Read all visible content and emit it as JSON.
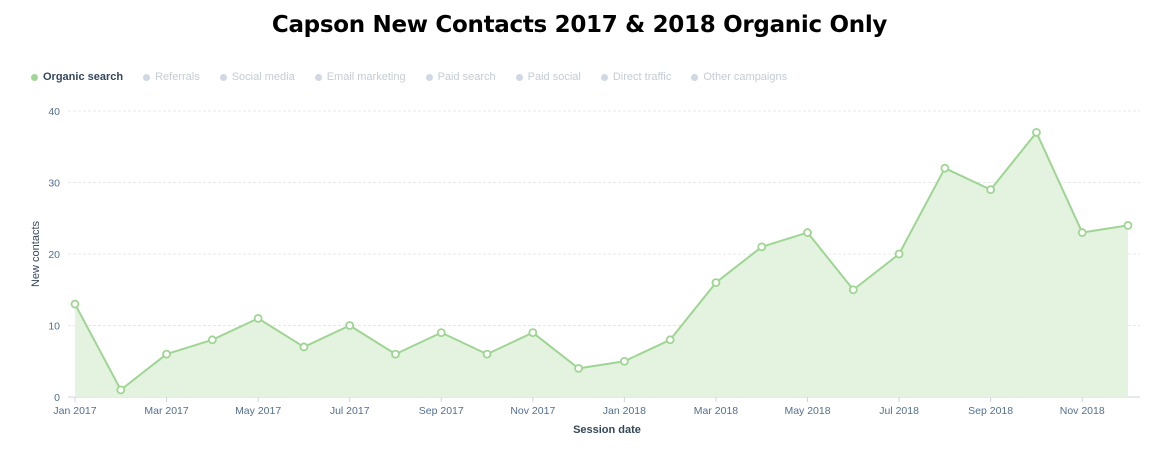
{
  "chart_data": {
    "type": "area",
    "title": "Capson New Contacts 2017 & 2018 Organic Only",
    "xlabel": "Session date",
    "ylabel": "New contacts",
    "ylim": [
      0,
      40
    ],
    "yticks": [
      0,
      10,
      20,
      30,
      40
    ],
    "grid": true,
    "legend_position": "top-left",
    "x": [
      "Jan 2017",
      "Feb 2017",
      "Mar 2017",
      "Apr 2017",
      "May 2017",
      "Jun 2017",
      "Jul 2017",
      "Aug 2017",
      "Sep 2017",
      "Oct 2017",
      "Nov 2017",
      "Dec 2017",
      "Jan 2018",
      "Feb 2018",
      "Mar 2018",
      "Apr 2018",
      "May 2018",
      "Jun 2018",
      "Jul 2018",
      "Aug 2018",
      "Sep 2018",
      "Oct 2018",
      "Nov 2018",
      "Dec 2018"
    ],
    "xtick_labels": [
      "Jan 2017",
      "Mar 2017",
      "May 2017",
      "Jul 2017",
      "Sep 2017",
      "Nov 2017",
      "Jan 2018",
      "Mar 2018",
      "May 2018",
      "Jul 2018",
      "Sep 2018",
      "Nov 2018"
    ],
    "series": [
      {
        "name": "Organic search",
        "color": "#9fd593",
        "values": [
          13,
          1,
          6,
          8,
          11,
          7,
          10,
          6,
          9,
          6,
          9,
          4,
          5,
          8,
          16,
          21,
          23,
          15,
          20,
          32,
          29,
          37,
          23,
          24
        ]
      }
    ],
    "legend": [
      {
        "label": "Organic search",
        "color": "#a1d796",
        "active": true
      },
      {
        "label": "Referrals",
        "color": "#cfd8e3",
        "active": false
      },
      {
        "label": "Social media",
        "color": "#cfd8e3",
        "active": false
      },
      {
        "label": "Email marketing",
        "color": "#cfd8e3",
        "active": false
      },
      {
        "label": "Paid search",
        "color": "#cfd8e3",
        "active": false
      },
      {
        "label": "Paid social",
        "color": "#cfd8e3",
        "active": false
      },
      {
        "label": "Direct traffic",
        "color": "#cfd8e3",
        "active": false
      },
      {
        "label": "Other campaigns",
        "color": "#cfd8e3",
        "active": false
      }
    ]
  }
}
